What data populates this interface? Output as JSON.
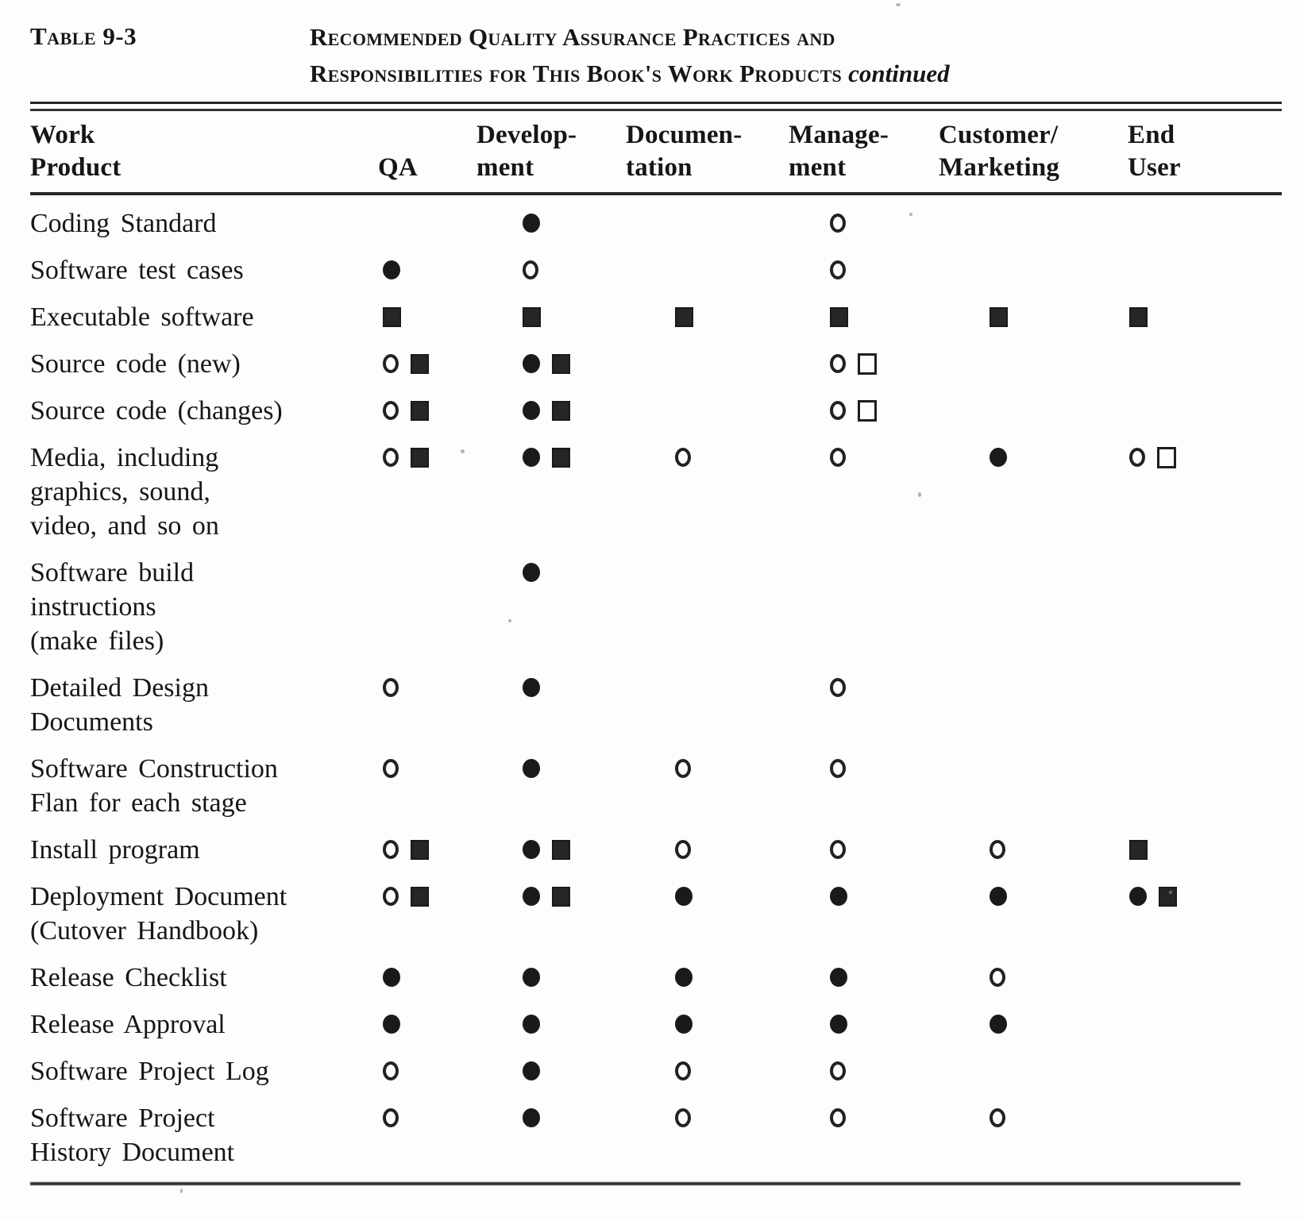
{
  "page": {
    "table_label": "Table 9-3",
    "title_line1": "Recommended Quality Assurance Practices and",
    "title_line2": "Responsibilities for This Book's Work Products",
    "title_continued": "continued"
  },
  "symbol_key": {
    "fc": "filled-circle",
    "oc": "open-circle",
    "fs": "filled-square",
    "os": "open-square"
  },
  "table": {
    "columns": [
      "Work Product",
      "QA",
      "Development",
      "Documentation",
      "Management",
      "Customer/Marketing",
      "End User"
    ],
    "column_header_lines": [
      [
        "Work",
        "Product"
      ],
      [
        "QA"
      ],
      [
        "Develop-",
        "ment"
      ],
      [
        "Documen-",
        "tation"
      ],
      [
        "Manage-",
        "ment"
      ],
      [
        "Customer/",
        "Marketing"
      ],
      [
        "End",
        "User"
      ]
    ],
    "rows": [
      {
        "product_lines": [
          "Coding Standard"
        ],
        "cells": [
          "",
          "fc",
          "",
          "oc",
          "",
          ""
        ]
      },
      {
        "product_lines": [
          "Software test cases"
        ],
        "cells": [
          "fc",
          "oc",
          "",
          "oc",
          "",
          ""
        ]
      },
      {
        "product_lines": [
          "Executable software"
        ],
        "cells": [
          "fs",
          "fs",
          "fs",
          "fs",
          "fs",
          "fs"
        ]
      },
      {
        "product_lines": [
          "Source code (new)"
        ],
        "cells": [
          "oc fs",
          "fc fs",
          "",
          "oc os",
          "",
          ""
        ]
      },
      {
        "product_lines": [
          "Source code (changes)"
        ],
        "cells": [
          "oc fs",
          "fc fs",
          "",
          "oc os",
          "",
          ""
        ]
      },
      {
        "product_lines": [
          "Media, including",
          "graphics, sound,",
          "video, and so on"
        ],
        "cells": [
          "oc fs",
          "fc fs",
          "oc",
          "oc",
          "fc",
          "oc os"
        ]
      },
      {
        "product_lines": [
          "Software build",
          "instructions",
          "(make files)"
        ],
        "cells": [
          "",
          "fc",
          "",
          "",
          "",
          ""
        ]
      },
      {
        "product_lines": [
          "Detailed Design",
          "Documents"
        ],
        "cells": [
          "oc",
          "fc",
          "",
          "oc",
          "",
          ""
        ]
      },
      {
        "product_lines": [
          "Software Construction",
          "Flan for each stage"
        ],
        "cells": [
          "oc",
          "fc",
          "oc",
          "oc",
          "",
          ""
        ]
      },
      {
        "product_lines": [
          "Install program"
        ],
        "cells": [
          "oc fs",
          "fc fs",
          "oc",
          "oc",
          "oc",
          "fs"
        ]
      },
      {
        "product_lines": [
          "Deployment Document",
          "(Cutover Handbook)"
        ],
        "cells": [
          "oc fs",
          "fc fs",
          "fc",
          "fc",
          "fc",
          "fc fs"
        ]
      },
      {
        "product_lines": [
          "Release Checklist"
        ],
        "cells": [
          "fc",
          "fc",
          "fc",
          "fc",
          "oc",
          ""
        ]
      },
      {
        "product_lines": [
          "Release Approval"
        ],
        "cells": [
          "fc",
          "fc",
          "fc",
          "fc",
          "fc",
          ""
        ]
      },
      {
        "product_lines": [
          "Software Project Log"
        ],
        "cells": [
          "oc",
          "fc",
          "oc",
          "oc",
          "",
          ""
        ]
      },
      {
        "product_lines": [
          "Software Project",
          "History Document"
        ],
        "cells": [
          "oc",
          "fc",
          "oc",
          "oc",
          "oc",
          ""
        ]
      }
    ]
  }
}
